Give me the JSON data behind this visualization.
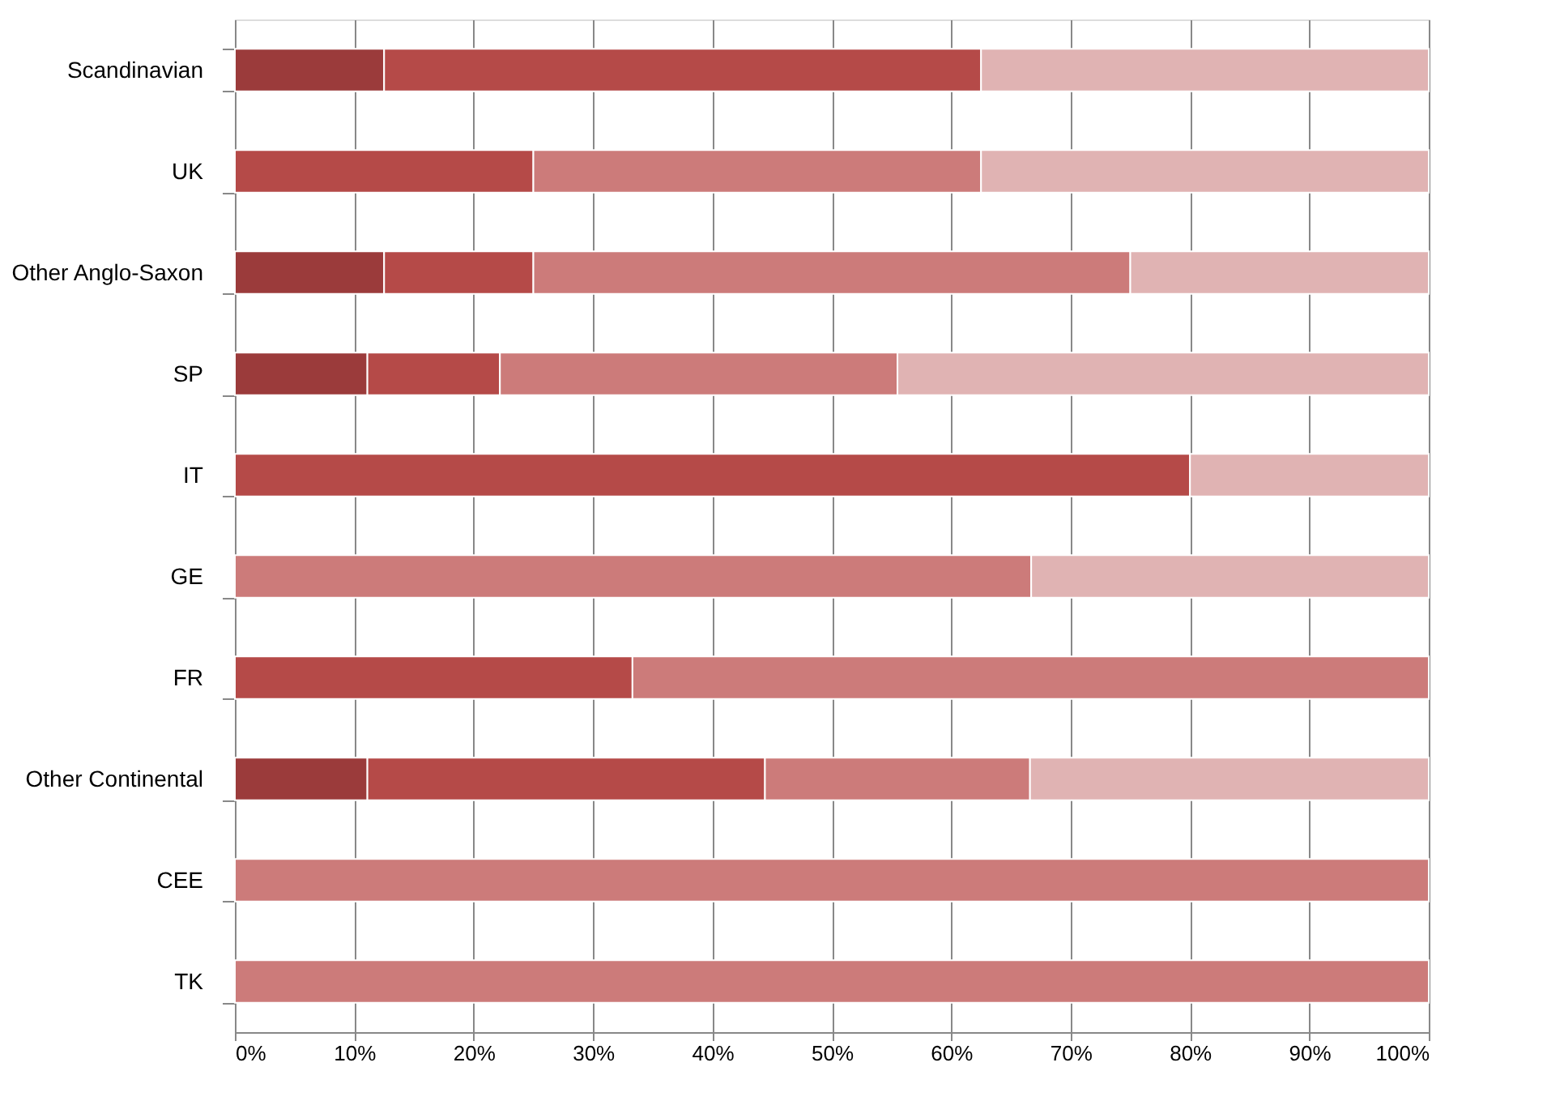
{
  "chart_data": {
    "type": "bar",
    "orientation": "horizontal",
    "stacked": true,
    "categories": [
      "Scandinavian",
      "UK",
      "Other Anglo-Saxon",
      "SP",
      "IT",
      "GE",
      "FR",
      "Other Continental",
      "CEE",
      "TK"
    ],
    "series": [
      {
        "color": "#9b3b3b",
        "values": [
          12.5,
          null,
          12.5,
          11.1,
          null,
          null,
          null,
          11.1,
          null,
          null
        ]
      },
      {
        "color": "#b54a48",
        "values": [
          50,
          25,
          12.5,
          11.1,
          80,
          null,
          33.3,
          33.3,
          null,
          null
        ]
      },
      {
        "color": "#cc7b7a",
        "values": [
          null,
          37.5,
          50,
          33.3,
          null,
          66.7,
          66.7,
          22.2,
          100,
          100
        ]
      },
      {
        "color": "#e0b3b3",
        "values": [
          37.5,
          37.5,
          25,
          44.5,
          20,
          33.3,
          null,
          33.4,
          null,
          null
        ]
      }
    ],
    "xlim": [
      0,
      100
    ],
    "xticks": [
      {
        "value": 0,
        "label": "0%"
      },
      {
        "value": 10,
        "label": "10%"
      },
      {
        "value": 20,
        "label": "20%"
      },
      {
        "value": 30,
        "label": "30%"
      },
      {
        "value": 40,
        "label": "40%"
      },
      {
        "value": 50,
        "label": "50%"
      },
      {
        "value": 60,
        "label": "60%"
      },
      {
        "value": 70,
        "label": "70%"
      },
      {
        "value": 80,
        "label": "80%"
      },
      {
        "value": 90,
        "label": "90%"
      },
      {
        "value": 100,
        "label": "100%"
      }
    ],
    "grid": "x",
    "legend": false
  }
}
